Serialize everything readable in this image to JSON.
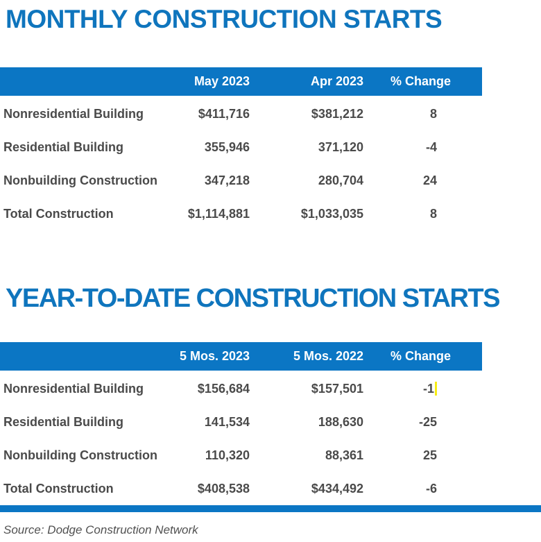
{
  "colors": {
    "accent_blue": "#0B76C4",
    "title_blue": "#0F75BD",
    "header_text": "#FFFFFF",
    "body_text": "#4A4A4A",
    "source_text": "#515151",
    "cursor_yellow": "#F7EC13",
    "background": "#FFFFFF"
  },
  "chart_data": [
    {
      "type": "table",
      "title": "MONTHLY CONSTRUCTION STARTS",
      "columns": [
        "",
        "May 2023",
        "Apr 2023",
        "% Change"
      ],
      "rows": [
        [
          "Nonresidential Building",
          "$411,716",
          "$381,212",
          "8"
        ],
        [
          "Residential Building",
          "355,946",
          "371,120",
          "-4"
        ],
        [
          "Nonbuilding Construction",
          "347,218",
          "280,704",
          "24"
        ],
        [
          "Total Construction",
          "$1,114,881",
          "$1,033,035",
          "8"
        ]
      ]
    },
    {
      "type": "table",
      "title": "YEAR-TO-DATE CONSTRUCTION STARTS",
      "columns": [
        "",
        "5 Mos. 2023",
        "5 Mos. 2022",
        "% Change"
      ],
      "rows": [
        [
          "Nonresidential Building",
          "$156,684",
          "$157,501",
          "-1"
        ],
        [
          "Residential Building",
          "141,534",
          "188,630",
          "-25"
        ],
        [
          "Nonbuilding Construction",
          "110,320",
          "88,361",
          "25"
        ],
        [
          "Total Construction",
          "$408,538",
          "$434,492",
          "-6"
        ]
      ]
    }
  ],
  "footer": {
    "source_note": "Source: Dodge Construction Network"
  }
}
